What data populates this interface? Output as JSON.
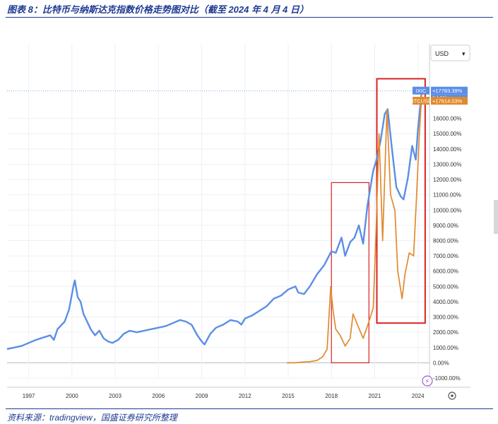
{
  "figure": {
    "title": "图表 8：比特币与纳斯达克指数价格走势图对比（截至 2024 年 4 月 4 日）",
    "source": "资料来源：tradingview，国盛证券研究所整理"
  },
  "chart_data": {
    "type": "line",
    "title": "",
    "xlabel": "",
    "ylabel": "",
    "unit_selector": "USD",
    "x_ticks": [
      "1997",
      "2000",
      "2003",
      "2006",
      "2009",
      "2012",
      "2015",
      "2018",
      "2021",
      "2024"
    ],
    "y_ticks": [
      "-1000.00%",
      "0.00%",
      "1000.00%",
      "2000.00%",
      "3000.00%",
      "4000.00%",
      "5000.00%",
      "6000.00%",
      "7000.00%",
      "8000.00%",
      "9000.00%",
      "10000.00%",
      "11000.00%",
      "12000.00%",
      "13000.00%",
      "14000.00%",
      "15000.00%",
      "16000.00%"
    ],
    "xlim": [
      1995.5,
      2024.8
    ],
    "ylim": [
      -1000,
      19500
    ],
    "grid": true,
    "colors": {
      "ixic": "#5b8ee6",
      "btc": "#e08a2e",
      "highlight": "#d92222",
      "grid": "#eef0f4"
    },
    "series": [
      {
        "name": "IXIC",
        "last_label": "+17783.39%",
        "sub_label": "1d 11h",
        "x": [
          1995.5,
          1996.0,
          1996.5,
          1997.0,
          1997.5,
          1998.0,
          1998.5,
          1998.75,
          1999.0,
          1999.5,
          1999.8,
          2000.1,
          2000.2,
          2000.4,
          2000.6,
          2000.8,
          2001.0,
          2001.3,
          2001.6,
          2001.9,
          2002.2,
          2002.5,
          2002.8,
          2003.2,
          2003.6,
          2004.0,
          2004.5,
          2005.0,
          2005.5,
          2006.0,
          2006.5,
          2007.0,
          2007.5,
          2007.9,
          2008.3,
          2008.7,
          2009.0,
          2009.2,
          2009.6,
          2010.0,
          2010.5,
          2011.0,
          2011.5,
          2011.75,
          2012.0,
          2012.5,
          2013.0,
          2013.5,
          2014.0,
          2014.5,
          2015.0,
          2015.5,
          2015.7,
          2016.1,
          2016.5,
          2017.0,
          2017.5,
          2018.0,
          2018.3,
          2018.7,
          2018.95,
          2019.3,
          2019.6,
          2019.9,
          2020.2,
          2020.5,
          2020.9,
          2021.1,
          2021.4,
          2021.7,
          2021.9,
          2022.2,
          2022.5,
          2022.8,
          2023.0,
          2023.3,
          2023.6,
          2023.85,
          2024.0,
          2024.26
        ],
        "y": [
          900,
          1000,
          1100,
          1300,
          1500,
          1650,
          1800,
          1500,
          2200,
          2700,
          3500,
          5000,
          5400,
          4300,
          4000,
          3200,
          2800,
          2200,
          1800,
          2100,
          1600,
          1400,
          1300,
          1500,
          1900,
          2100,
          2000,
          2100,
          2200,
          2300,
          2400,
          2600,
          2800,
          2700,
          2500,
          1800,
          1400,
          1200,
          1900,
          2300,
          2500,
          2800,
          2700,
          2500,
          2900,
          3100,
          3400,
          3700,
          4200,
          4400,
          4800,
          5000,
          4600,
          4500,
          5000,
          5800,
          6400,
          7300,
          7200,
          8200,
          7000,
          7900,
          8200,
          9000,
          7800,
          10300,
          12600,
          13200,
          14500,
          16300,
          16600,
          14000,
          11500,
          10900,
          10700,
          12100,
          14200,
          13300,
          15300,
          17800
        ]
      },
      {
        "name": "BTCUSD",
        "last_label": "+17614.03%",
        "x": [
          2014.9,
          2015.5,
          2016.0,
          2016.5,
          2017.0,
          2017.4,
          2017.7,
          2017.95,
          2018.1,
          2018.3,
          2018.6,
          2018.95,
          2019.3,
          2019.5,
          2019.8,
          2020.2,
          2020.6,
          2020.9,
          2021.1,
          2021.3,
          2021.55,
          2021.85,
          2022.1,
          2022.4,
          2022.6,
          2022.9,
          2023.1,
          2023.4,
          2023.7,
          2023.9,
          2024.1,
          2024.26
        ],
        "y": [
          0,
          0,
          50,
          80,
          150,
          400,
          900,
          5000,
          3500,
          2200,
          1800,
          1100,
          1600,
          3200,
          2500,
          1600,
          2700,
          3600,
          8800,
          15000,
          8000,
          16600,
          11000,
          10000,
          6000,
          4200,
          5800,
          7200,
          7000,
          10800,
          15000,
          17600
        ]
      }
    ],
    "highlights": [
      {
        "x": [
          2018.0,
          2020.6
        ],
        "y": [
          0,
          11800
        ]
      },
      {
        "x": [
          2021.15,
          2024.5
        ],
        "y": [
          2600,
          18600
        ]
      }
    ]
  }
}
